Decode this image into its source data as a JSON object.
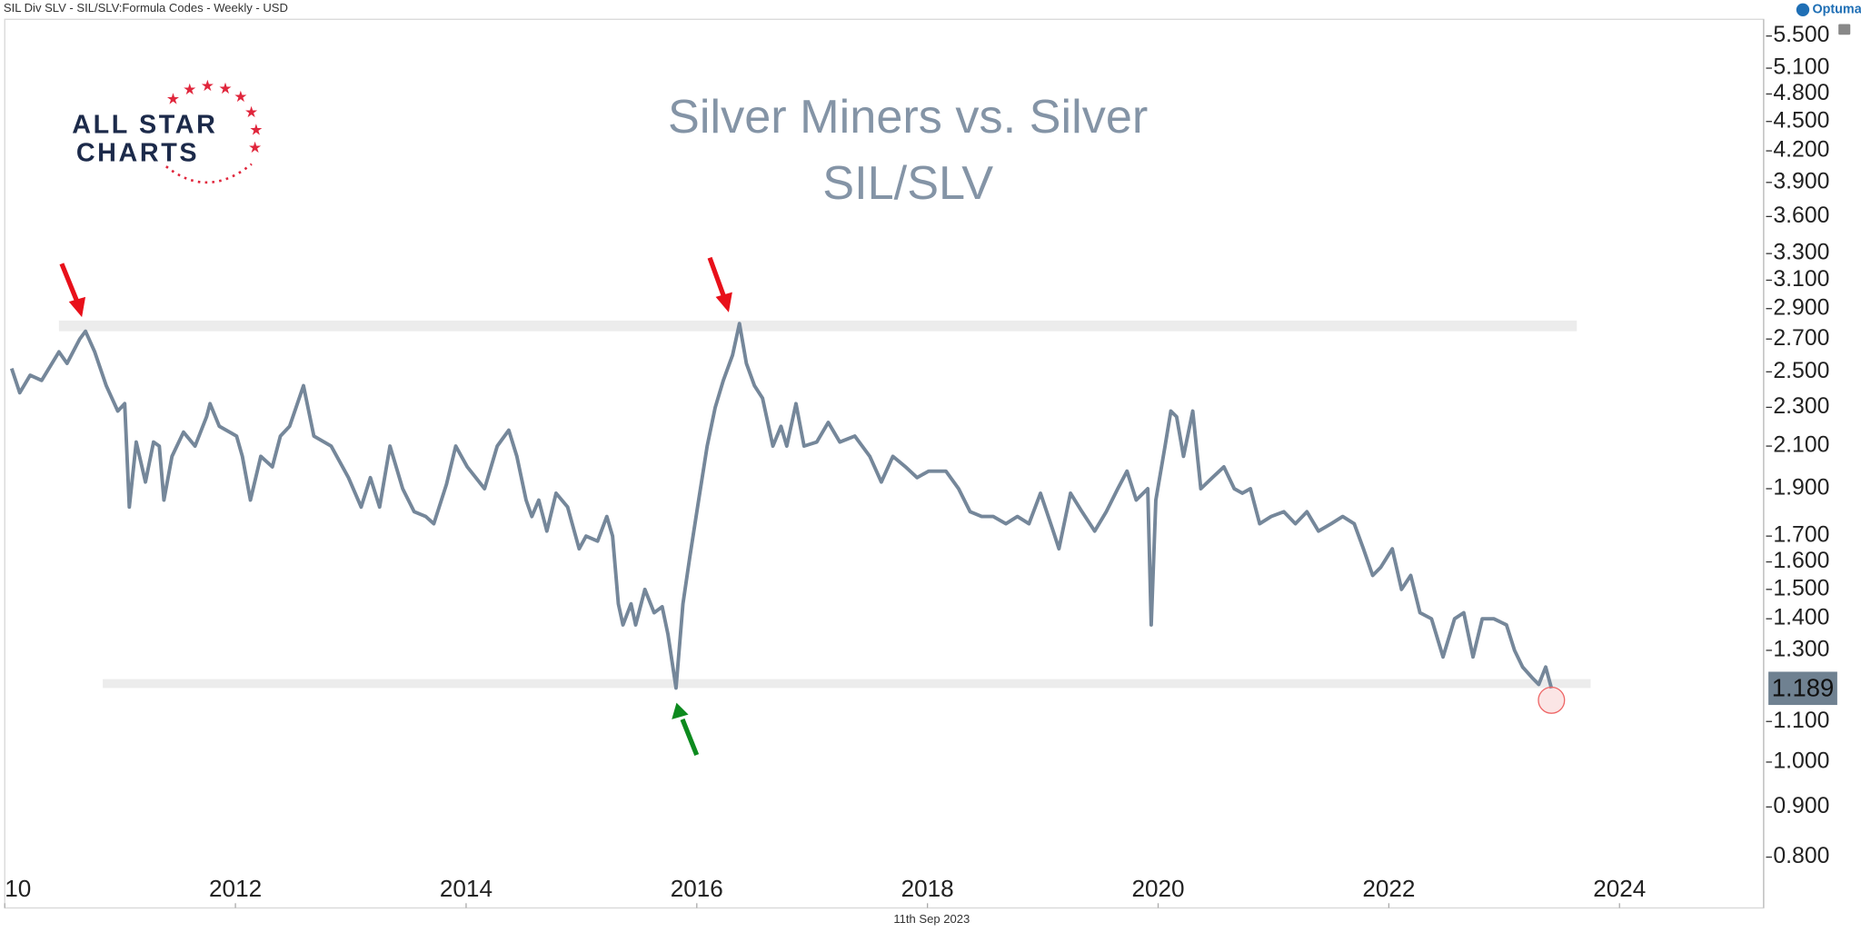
{
  "header": {
    "caption": "SIL Div SLV - SIL/SLV:Formula Codes - Weekly - USD",
    "brand": "Optuma"
  },
  "logo": {
    "line1": "ALL STAR",
    "line2": "CHARTS"
  },
  "footer": {
    "date": "11th Sep 2023"
  },
  "chart_data": {
    "type": "line",
    "title": "Silver Miners vs. Silver",
    "subtitle": "SIL/SLV",
    "log_scale": true,
    "grid": false,
    "xlim": [
      2010,
      2025.25
    ],
    "xticks": [
      {
        "value": 2010,
        "label": "10"
      },
      2012,
      2014,
      2016,
      2018,
      2020,
      2022,
      2024
    ],
    "ylim": [
      0.71,
      5.72
    ],
    "yticks": [
      {
        "value": 0.8,
        "label": "0.800"
      },
      {
        "value": 0.9,
        "label": "0.900"
      },
      {
        "value": 1.0,
        "label": "1.000"
      },
      {
        "value": 1.1,
        "label": "1.100"
      },
      {
        "value": 1.3,
        "label": "1.300"
      },
      {
        "value": 1.4,
        "label": "1.400"
      },
      {
        "value": 1.5,
        "label": "1.500"
      },
      {
        "value": 1.6,
        "label": "1.600"
      },
      {
        "value": 1.7,
        "label": "1.700"
      },
      {
        "value": 1.9,
        "label": "1.900"
      },
      {
        "value": 2.1,
        "label": "2.100"
      },
      {
        "value": 2.3,
        "label": "2.300"
      },
      {
        "value": 2.5,
        "label": "2.500"
      },
      {
        "value": 2.7,
        "label": "2.700"
      },
      {
        "value": 2.9,
        "label": "2.900"
      },
      {
        "value": 3.1,
        "label": "3.100"
      },
      {
        "value": 3.3,
        "label": "3.300"
      },
      {
        "value": 3.6,
        "label": "3.600"
      },
      {
        "value": 3.9,
        "label": "3.900"
      },
      {
        "value": 4.2,
        "label": "4.200"
      },
      {
        "value": 4.5,
        "label": "4.500"
      },
      {
        "value": 4.8,
        "label": "4.800"
      },
      {
        "value": 5.1,
        "label": "5.100"
      },
      {
        "value": 5.5,
        "label": "5.500"
      }
    ],
    "bands": [
      {
        "from": 2.75,
        "to": 2.82,
        "start": 2010.47,
        "end": 2023.63
      },
      {
        "from": 1.19,
        "to": 1.215,
        "start": 2010.85,
        "end": 2023.75
      }
    ],
    "last_price": {
      "value": 1.189,
      "label": "1.189"
    },
    "series": [
      {
        "name": "SIL/SLV",
        "color": "#75879a",
        "x": [
          2010.06,
          2010.13,
          2010.22,
          2010.32,
          2010.47,
          2010.54,
          2010.65,
          2010.7,
          2010.78,
          2010.88,
          2010.98,
          2011.04,
          2011.08,
          2011.14,
          2011.22,
          2011.29,
          2011.34,
          2011.38,
          2011.45,
          2011.55,
          2011.65,
          2011.75,
          2011.78,
          2011.86,
          2012.01,
          2012.06,
          2012.13,
          2012.22,
          2012.32,
          2012.39,
          2012.47,
          2012.59,
          2012.68,
          2012.83,
          2012.98,
          2013.09,
          2013.17,
          2013.25,
          2013.34,
          2013.45,
          2013.55,
          2013.65,
          2013.72,
          2013.83,
          2013.91,
          2014.01,
          2014.16,
          2014.27,
          2014.37,
          2014.44,
          2014.52,
          2014.57,
          2014.63,
          2014.7,
          2014.78,
          2014.88,
          2014.98,
          2015.04,
          2015.14,
          2015.22,
          2015.27,
          2015.32,
          2015.36,
          2015.43,
          2015.47,
          2015.55,
          2015.63,
          2015.7,
          2015.75,
          2015.82,
          2015.88,
          2015.94,
          2016.01,
          2016.09,
          2016.16,
          2016.23,
          2016.31,
          2016.37,
          2016.43,
          2016.5,
          2016.57,
          2016.66,
          2016.73,
          2016.78,
          2016.86,
          2016.93,
          2017.04,
          2017.14,
          2017.24,
          2017.37,
          2017.5,
          2017.6,
          2017.7,
          2017.81,
          2017.91,
          2018.01,
          2018.16,
          2018.27,
          2018.37,
          2018.47,
          2018.57,
          2018.68,
          2018.78,
          2018.88,
          2018.98,
          2019.09,
          2019.14,
          2019.24,
          2019.34,
          2019.45,
          2019.55,
          2019.65,
          2019.73,
          2019.81,
          2019.91,
          2019.94,
          2019.98,
          2020.06,
          2020.11,
          2020.16,
          2020.22,
          2020.3,
          2020.37,
          2020.47,
          2020.57,
          2020.66,
          2020.73,
          2020.8,
          2020.88,
          2020.98,
          2021.09,
          2021.19,
          2021.29,
          2021.39,
          2021.5,
          2021.6,
          2021.7,
          2021.78,
          2021.86,
          2021.93,
          2022.03,
          2022.11,
          2022.19,
          2022.27,
          2022.37,
          2022.47,
          2022.57,
          2022.65,
          2022.73,
          2022.81,
          2022.91,
          2023.02,
          2023.09,
          2023.16,
          2023.24,
          2023.3,
          2023.36,
          2023.41
        ],
        "values": [
          2.52,
          2.38,
          2.48,
          2.45,
          2.62,
          2.55,
          2.7,
          2.75,
          2.62,
          2.42,
          2.28,
          2.32,
          1.82,
          2.12,
          1.93,
          2.12,
          2.1,
          1.85,
          2.05,
          2.17,
          2.1,
          2.25,
          2.32,
          2.2,
          2.15,
          2.05,
          1.85,
          2.05,
          2.0,
          2.15,
          2.2,
          2.42,
          2.15,
          2.1,
          1.95,
          1.82,
          1.95,
          1.82,
          2.1,
          1.9,
          1.8,
          1.78,
          1.75,
          1.92,
          2.1,
          2.0,
          1.9,
          2.1,
          2.18,
          2.05,
          1.85,
          1.78,
          1.85,
          1.72,
          1.88,
          1.82,
          1.65,
          1.7,
          1.68,
          1.78,
          1.7,
          1.45,
          1.38,
          1.45,
          1.38,
          1.5,
          1.42,
          1.44,
          1.35,
          1.19,
          1.45,
          1.62,
          1.83,
          2.1,
          2.3,
          2.45,
          2.6,
          2.8,
          2.55,
          2.42,
          2.35,
          2.1,
          2.2,
          2.1,
          2.32,
          2.1,
          2.12,
          2.22,
          2.12,
          2.15,
          2.05,
          1.93,
          2.05,
          2.0,
          1.95,
          1.98,
          1.98,
          1.9,
          1.8,
          1.78,
          1.78,
          1.75,
          1.78,
          1.75,
          1.88,
          1.72,
          1.65,
          1.88,
          1.8,
          1.72,
          1.8,
          1.9,
          1.98,
          1.85,
          1.9,
          1.38,
          1.85,
          2.1,
          2.28,
          2.25,
          2.05,
          2.28,
          1.9,
          1.95,
          2.0,
          1.9,
          1.88,
          1.9,
          1.75,
          1.78,
          1.8,
          1.75,
          1.8,
          1.72,
          1.75,
          1.78,
          1.75,
          1.65,
          1.55,
          1.58,
          1.65,
          1.5,
          1.55,
          1.42,
          1.4,
          1.28,
          1.4,
          1.42,
          1.28,
          1.4,
          1.4,
          1.38,
          1.3,
          1.25,
          1.22,
          1.2,
          1.25,
          1.189
        ]
      }
    ]
  }
}
